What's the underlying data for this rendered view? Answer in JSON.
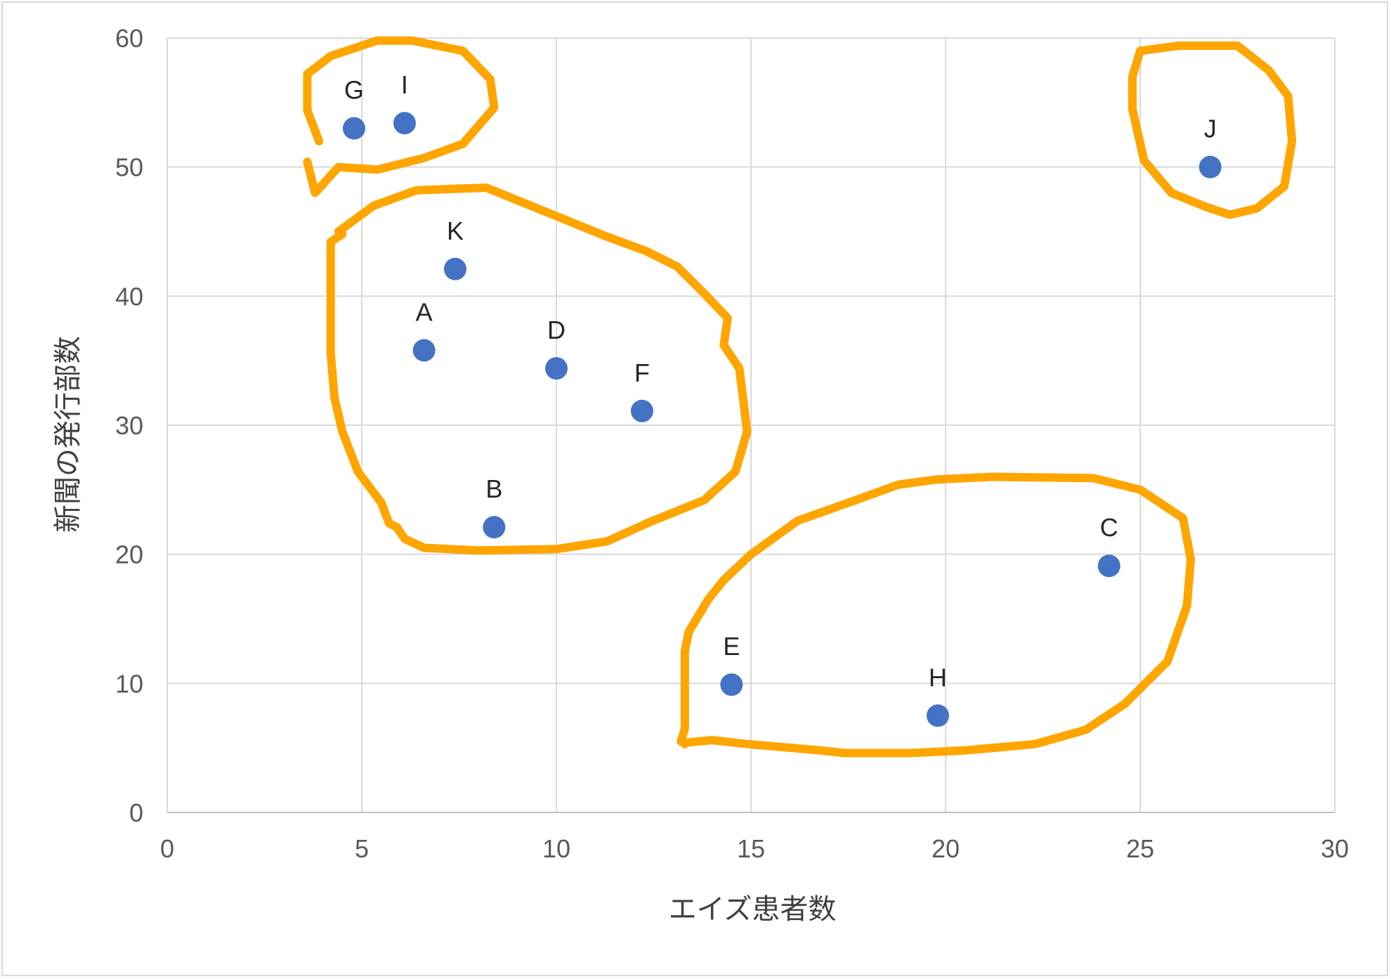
{
  "chart_data": {
    "type": "scatter",
    "title": "",
    "xlabel": "エイズ患者数",
    "ylabel": "新聞の発行部数",
    "xlim": [
      0,
      30
    ],
    "ylim": [
      0,
      60
    ],
    "xticks": [
      0,
      5,
      10,
      15,
      20,
      25,
      30
    ],
    "yticks": [
      0,
      10,
      20,
      30,
      40,
      50,
      60
    ],
    "grid": true,
    "legend": "none",
    "series": [
      {
        "name": "points",
        "color": "#4472c4",
        "points": [
          {
            "label": "A",
            "x": 6.6,
            "y": 35.8
          },
          {
            "label": "B",
            "x": 8.4,
            "y": 22.1
          },
          {
            "label": "C",
            "x": 24.2,
            "y": 19.1
          },
          {
            "label": "D",
            "x": 10.0,
            "y": 34.4
          },
          {
            "label": "E",
            "x": 14.5,
            "y": 9.9
          },
          {
            "label": "F",
            "x": 12.2,
            "y": 31.1
          },
          {
            "label": "G",
            "x": 4.8,
            "y": 53.0
          },
          {
            "label": "H",
            "x": 19.8,
            "y": 7.5
          },
          {
            "label": "I",
            "x": 6.1,
            "y": 53.4
          },
          {
            "label": "J",
            "x": 26.8,
            "y": 50.0
          },
          {
            "label": "K",
            "x": 7.4,
            "y": 42.1
          }
        ]
      }
    ],
    "annotations": {
      "type": "hand-drawn cluster outlines",
      "color": "#ffa500",
      "clusters": [
        [
          "G",
          "I"
        ],
        [
          "J"
        ],
        [
          "K",
          "A",
          "D",
          "F",
          "B"
        ],
        [
          "E",
          "H",
          "C"
        ]
      ]
    }
  }
}
